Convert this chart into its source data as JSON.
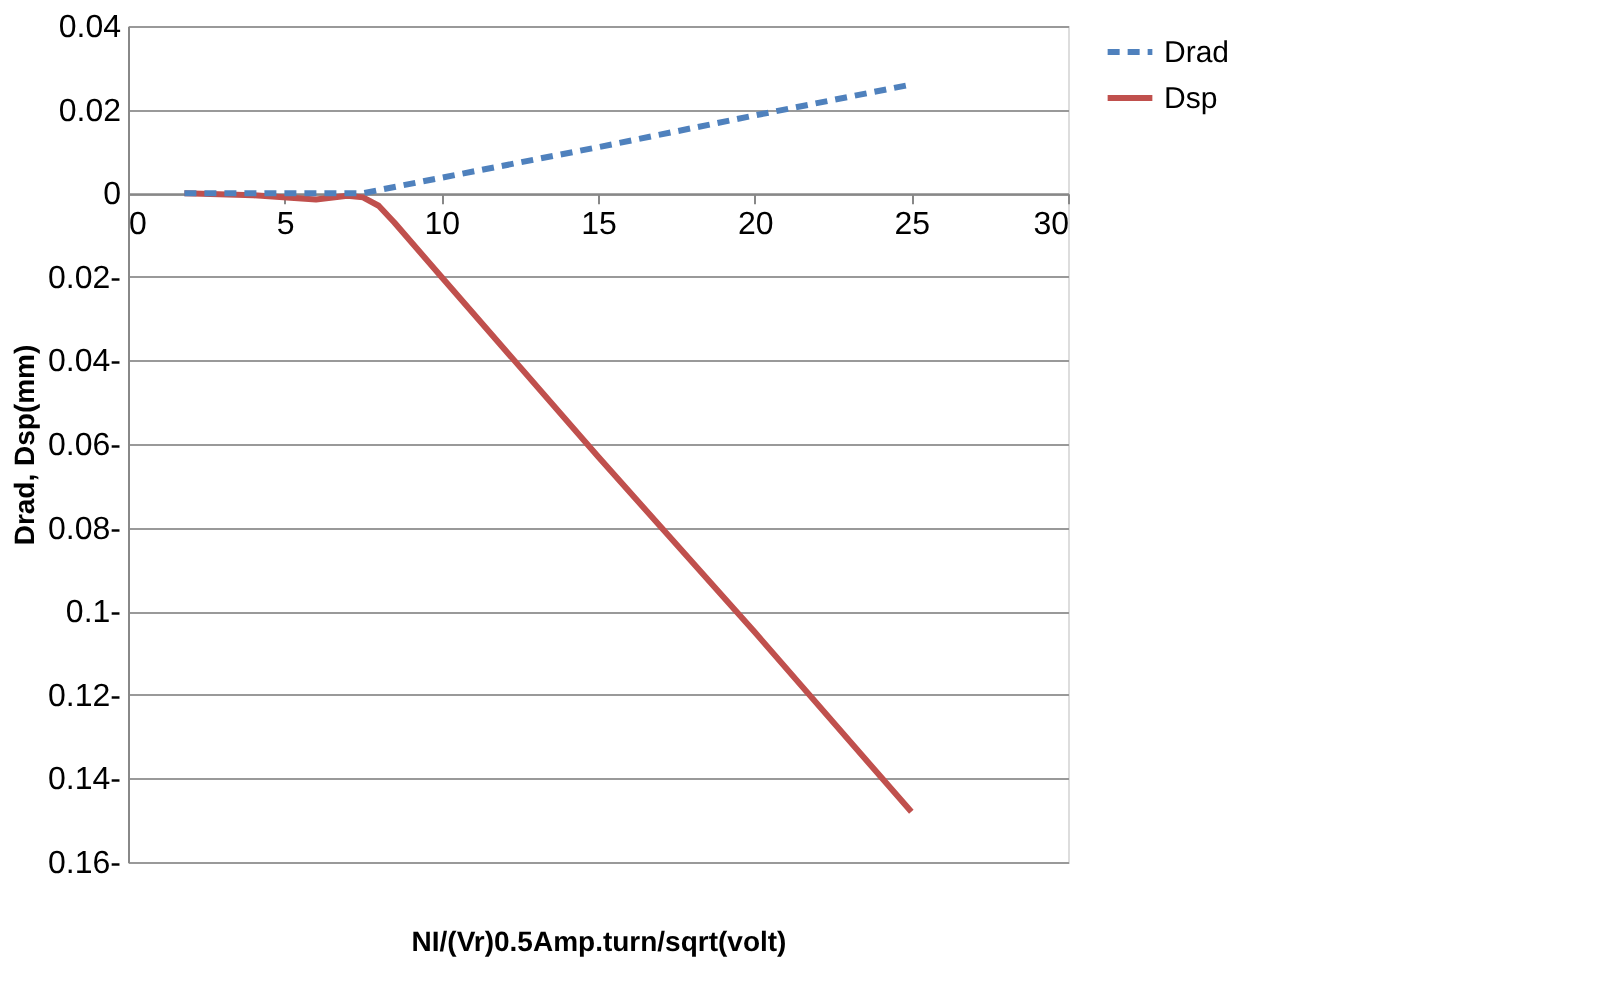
{
  "chart_data": {
    "type": "line",
    "xlabel": "NI/(Vr)0.5Amp.turn/sqrt(volt)",
    "ylabel": "Drad, Dsp(mm)",
    "xlim": [
      0,
      30
    ],
    "xticks": [
      0,
      5,
      10,
      15,
      20,
      25,
      30
    ],
    "ylim": [
      -0.16,
      0.04
    ],
    "yticks": [
      0.04,
      0.02,
      0,
      {
        "value": -0.02,
        "label": "0.02-"
      },
      {
        "value": -0.04,
        "label": "0.04-"
      },
      {
        "value": -0.06,
        "label": "0.06-"
      },
      {
        "value": -0.08,
        "label": "0.08-"
      },
      {
        "value": -0.1,
        "label": "0.1-"
      },
      {
        "value": -0.12,
        "label": "0.12-"
      },
      {
        "value": -0.14,
        "label": "0.14-"
      },
      {
        "value": -0.16,
        "label": "0.16-"
      }
    ],
    "grid": "y",
    "legend": "top right",
    "marker": "none",
    "series": [
      {
        "name": "Drad",
        "color": "#4f81bd",
        "line_style": "dashed",
        "x": [
          1.8,
          4,
          6,
          7.5,
          10,
          15,
          20,
          25
        ],
        "values": [
          0,
          0,
          0,
          0,
          0.0037,
          0.011,
          0.0186,
          0.026
        ]
      },
      {
        "name": "Dsp",
        "color": "#c0504d",
        "line_style": "solid",
        "x": [
          1.8,
          4,
          6,
          7,
          7.5,
          8,
          8.5,
          10,
          15,
          20,
          25
        ],
        "values": [
          0,
          -0.0005,
          -0.0015,
          -0.0006,
          -0.001,
          -0.003,
          -0.007,
          -0.02,
          -0.063,
          -0.105,
          -0.148
        ]
      }
    ]
  }
}
